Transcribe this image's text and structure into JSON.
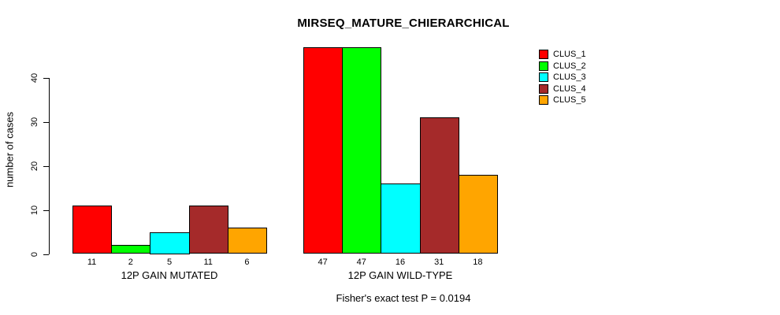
{
  "chart_data": {
    "type": "bar",
    "title": "MIRSEQ_MATURE_CHIERARCHICAL",
    "ylabel": "number of cases",
    "xlabel": "",
    "ylim": [
      0,
      47
    ],
    "yticks": [
      0,
      10,
      20,
      30,
      40
    ],
    "grid": false,
    "legend_position": "top-right",
    "bar_value_labels_shown": true,
    "categories": [
      "12P GAIN MUTATED",
      "12P GAIN WILD-TYPE"
    ],
    "series": [
      {
        "name": "CLUS_1",
        "color": "#FF0000",
        "values": [
          11,
          47
        ]
      },
      {
        "name": "CLUS_2",
        "color": "#00FF00",
        "values": [
          2,
          47
        ]
      },
      {
        "name": "CLUS_3",
        "color": "#00FFFF",
        "values": [
          5,
          16
        ]
      },
      {
        "name": "CLUS_4",
        "color": "#A52A2A",
        "values": [
          11,
          31
        ]
      },
      {
        "name": "CLUS_5",
        "color": "#FFA500",
        "values": [
          6,
          18
        ]
      }
    ],
    "footnote": "Fisher's exact test P = 0.0194"
  }
}
